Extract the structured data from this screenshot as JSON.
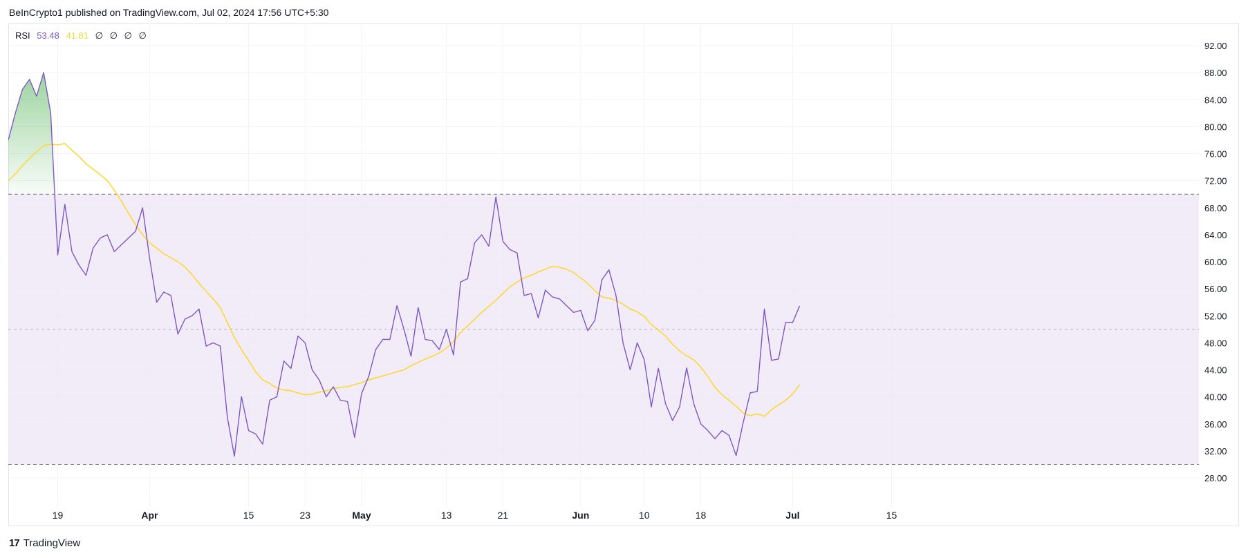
{
  "header": {
    "published": "BeInCrypto1 published on TradingView.com, Jul 02, 2024 17:56 UTC+5:30"
  },
  "footer": {
    "brand": "TradingView",
    "logo_glyph": "17"
  },
  "legend": {
    "indicator": "RSI",
    "rsi_value": "53.48",
    "ma_value": "41.81",
    "extras": [
      "∅",
      "∅",
      "∅",
      "∅"
    ]
  },
  "colors": {
    "rsi": "#7e57c2",
    "ma": "#fdd835",
    "band": "#ede7f6",
    "overbought_fill": "#4caf50",
    "dashed": "#787b86",
    "grid": "#f0f3fa",
    "axis_text": "#131722"
  },
  "chart_data": {
    "type": "line",
    "title": "",
    "xlabel": "",
    "ylabel": "",
    "ylim": [
      25,
      95
    ],
    "yticks": [
      "92.00",
      "88.00",
      "84.00",
      "80.00",
      "76.00",
      "72.00",
      "68.00",
      "64.00",
      "60.00",
      "56.00",
      "52.00",
      "48.00",
      "44.00",
      "40.00",
      "36.00",
      "32.00",
      "28.00"
    ],
    "ytick_values": [
      92,
      88,
      84,
      80,
      76,
      72,
      68,
      64,
      60,
      56,
      52,
      48,
      44,
      40,
      36,
      32,
      28
    ],
    "xticks": [
      {
        "label": "19",
        "index": 7
      },
      {
        "label": "Apr",
        "index": 20
      },
      {
        "label": "15",
        "index": 34
      },
      {
        "label": "23",
        "index": 42
      },
      {
        "label": "May",
        "index": 50
      },
      {
        "label": "13",
        "index": 62
      },
      {
        "label": "21",
        "index": 70
      },
      {
        "label": "Jun",
        "index": 81
      },
      {
        "label": "10",
        "index": 90
      },
      {
        "label": "18",
        "index": 98
      },
      {
        "label": "Jul",
        "index": 111
      },
      {
        "label": "15",
        "index": 125
      }
    ],
    "x_count": 132,
    "band": {
      "upper": 70,
      "middle": 50,
      "lower": 30
    },
    "grid": true,
    "series": [
      {
        "values": [
          78.0,
          82.0,
          85.5,
          87.0,
          84.5,
          88.0,
          82.0,
          61.0,
          68.5,
          61.5,
          59.5,
          58.0,
          62.0,
          63.5,
          64.0,
          61.5,
          62.5,
          63.5,
          64.5,
          68.0,
          60.5,
          54.0,
          55.5,
          55.0,
          49.3,
          51.5,
          52.0,
          53.0,
          47.5,
          48.0,
          47.5,
          37.0,
          31.2,
          40.0,
          35.0,
          34.5,
          33.0,
          39.5,
          40.0,
          45.3,
          44.2,
          49.0,
          48.0,
          44.0,
          42.5,
          40.0,
          41.5,
          39.5,
          39.3,
          34.0,
          40.5,
          43.0,
          47.0,
          48.5,
          48.5,
          53.5,
          50.0,
          46.0,
          53.2,
          48.5,
          48.3,
          47.0,
          50.0,
          46.2,
          57.0,
          57.5,
          62.8,
          64.0,
          62.3,
          69.6,
          63.0,
          61.8,
          61.3,
          55.0,
          55.3,
          51.7,
          55.8,
          54.8,
          54.5,
          53.5,
          52.5,
          52.8,
          49.8,
          51.3,
          57.3,
          58.8,
          55.0,
          48.0,
          44.0,
          48.0,
          45.5,
          38.5,
          44.2,
          39.0,
          36.5,
          38.5,
          44.3,
          39.0,
          36.0,
          35.0,
          33.8,
          35.0,
          34.3,
          31.3,
          36.2,
          40.6,
          40.8,
          53.0,
          45.4,
          45.6,
          51.0,
          51.0,
          53.48
        ]
      },
      {
        "values": [
          72.0,
          73.0,
          74.2,
          75.3,
          76.3,
          77.2,
          77.4,
          77.3,
          77.5,
          76.5,
          75.6,
          74.5,
          73.7,
          72.9,
          72.0,
          70.6,
          69.0,
          67.2,
          65.5,
          64.0,
          62.8,
          62.0,
          61.2,
          60.6,
          60.0,
          59.2,
          58.1,
          56.8,
          55.6,
          54.5,
          53.2,
          51.0,
          48.8,
          47.0,
          45.4,
          43.7,
          42.5,
          42.0,
          41.3,
          41.0,
          40.9,
          40.6,
          40.3,
          40.4,
          40.7,
          40.9,
          41.2,
          41.4,
          41.5,
          41.8,
          42.1,
          42.5,
          42.8,
          43.1,
          43.4,
          43.7,
          44.0,
          44.6,
          45.1,
          45.6,
          46.0,
          46.5,
          47.2,
          48.2,
          49.5,
          50.5,
          51.5,
          52.5,
          53.4,
          54.3,
          55.3,
          56.3,
          57.0,
          57.6,
          58.0,
          58.5,
          58.9,
          59.3,
          59.2,
          58.9,
          58.4,
          57.6,
          56.8,
          55.7,
          54.8,
          54.6,
          54.3,
          53.7,
          53.0,
          52.6,
          51.9,
          50.7,
          49.9,
          49.0,
          47.8,
          46.8,
          46.1,
          45.5,
          44.4,
          43.0,
          41.4,
          40.3,
          39.5,
          38.6,
          37.6,
          37.2,
          37.5,
          37.1,
          38.1,
          38.8,
          39.5,
          40.4,
          41.81
        ]
      }
    ]
  }
}
